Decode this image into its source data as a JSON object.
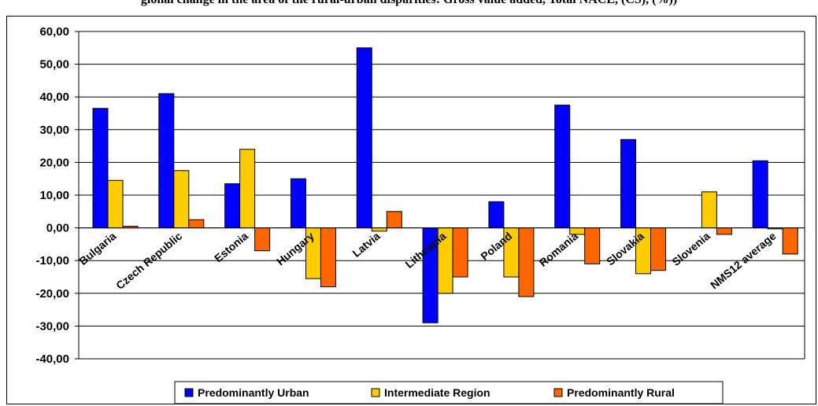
{
  "caption": "gional change in the area of the rural-urban disparities: Gross value added, Total NACE, (CS), (%))",
  "chart_data": {
    "type": "bar",
    "categories": [
      "Bulgaria",
      "Czech Republic",
      "Estonia",
      "Hungary",
      "Latvia",
      "Lithuania",
      "Poland",
      "Romania",
      "Slovakia",
      "Slovenia",
      "NMS12 average"
    ],
    "series": [
      {
        "name": "Predominantly Urban",
        "color": "#0000ff",
        "values": [
          36.5,
          41.0,
          13.5,
          15.0,
          55.0,
          -29.0,
          8.0,
          37.5,
          27.0,
          0,
          20.5
        ]
      },
      {
        "name": "Intermediate Region",
        "color": "#ffcc00",
        "values": [
          14.5,
          17.5,
          24.0,
          -15.5,
          -1.0,
          -20.0,
          -15.0,
          -2.0,
          -14.0,
          11.0,
          -0.3
        ]
      },
      {
        "name": "Predominantly Rural",
        "color": "#ff6600",
        "values": [
          0.5,
          2.5,
          -7.0,
          -18.0,
          5.0,
          -15.0,
          -21.0,
          -11.0,
          -13.0,
          -2.0,
          -8.0
        ]
      }
    ],
    "yticks": [
      "60,00",
      "50,00",
      "40,00",
      "30,00",
      "20,00",
      "10,00",
      "0,00",
      "-10,00",
      "-20,00",
      "-30,00",
      "-40,00"
    ],
    "ylim": [
      -40,
      60
    ],
    "grid": true,
    "legend": "bottom"
  }
}
